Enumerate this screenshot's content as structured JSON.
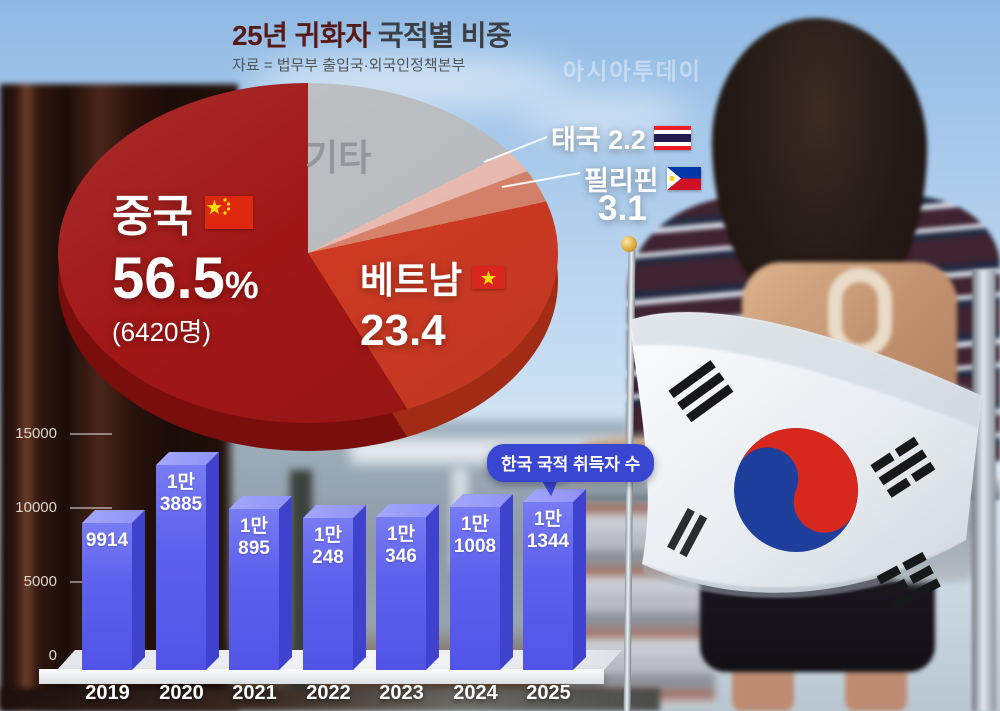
{
  "header": {
    "title_strong": "25년 귀화자",
    "title_rest": " 국적별 비중",
    "source": "자료 = 법무부 출입국·외국인정책본부",
    "watermark": "아시아투데이"
  },
  "pie_labels": {
    "others": "기타",
    "china_name": "중국",
    "china_pct": "56.5",
    "china_pct_unit": "%",
    "china_detail": "(6420명)",
    "vietnam_name": "베트남",
    "vietnam_pct": "23.4",
    "thailand_name": "태국 2.2",
    "philippines_name": "필리핀",
    "philippines_pct": "3.1"
  },
  "badge": {
    "label": "한국 국적 취득자 수",
    "color": "#3846d2"
  },
  "chart_data": [
    {
      "type": "pie",
      "title": "25년 귀화자 국적별 비중",
      "unit": "%",
      "start_angle_deg": 0,
      "direction": "clockwise",
      "slices": [
        {
          "label": "기타",
          "value": 14.8,
          "color": "#babdc0",
          "side_color": "#94979a"
        },
        {
          "label": "태국",
          "value": 2.2,
          "color": "#eabcb3",
          "side_color": "#c49b91"
        },
        {
          "label": "필리핀",
          "value": 3.1,
          "color": "#d8836c",
          "side_color": "#b16751"
        },
        {
          "label": "베트남",
          "value": 23.4,
          "color": "#cf3b23",
          "side_color": "#a22b15"
        },
        {
          "label": "중국",
          "value": 56.5,
          "color": "#a01716",
          "side_color": "#7a0e0d",
          "note": "6420명"
        }
      ]
    },
    {
      "type": "bar",
      "title": "한국 국적 취득자 수",
      "categories": [
        "2019",
        "2020",
        "2021",
        "2022",
        "2023",
        "2024",
        "2025"
      ],
      "values": [
        9914,
        13885,
        10895,
        10248,
        10346,
        11008,
        11344
      ],
      "value_labels": [
        [
          "9914"
        ],
        [
          "1만",
          "3885"
        ],
        [
          "1만",
          "895"
        ],
        [
          "1만",
          "248"
        ],
        [
          "1만",
          "346"
        ],
        [
          "1만",
          "1008"
        ],
        [
          "1만",
          "1344"
        ]
      ],
      "ylim": [
        0,
        15000
      ],
      "yticks": [
        0,
        5000,
        10000,
        15000
      ],
      "bar_color": "#5e61ec"
    }
  ]
}
